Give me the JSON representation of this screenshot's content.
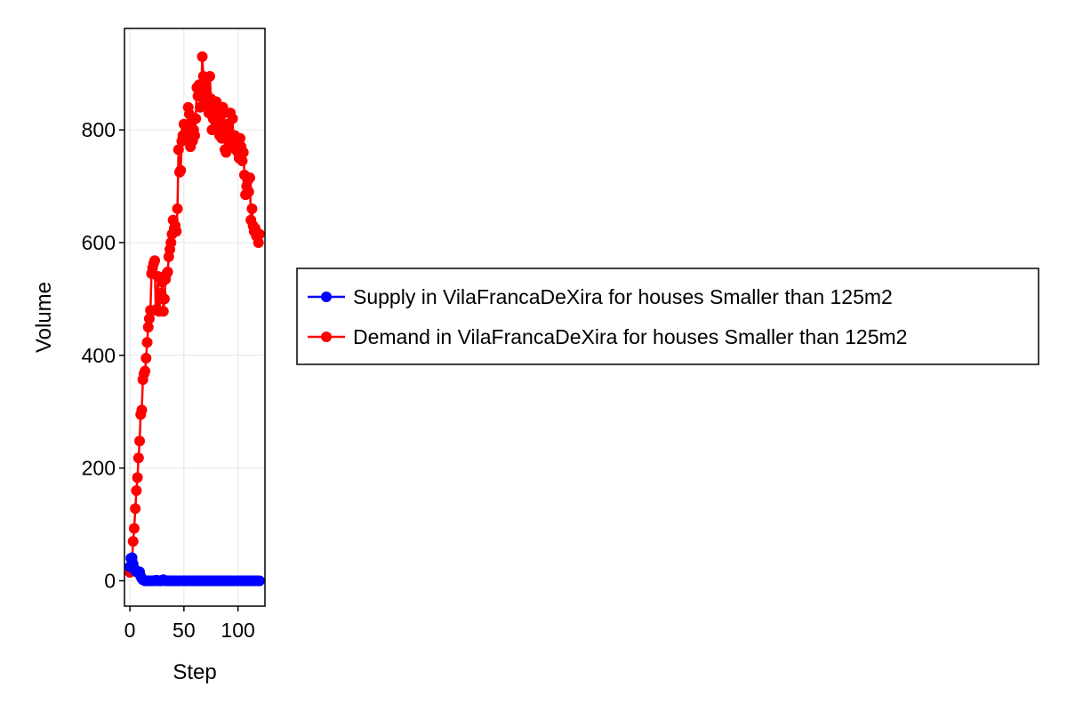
{
  "chart_data": {
    "type": "line",
    "title": "",
    "xlabel": "Step",
    "ylabel": "Volume",
    "xlim": [
      -5,
      125
    ],
    "ylim": [
      -45,
      980
    ],
    "x_ticks": [
      0,
      50,
      100
    ],
    "y_ticks": [
      0,
      200,
      400,
      600,
      800
    ],
    "x_tick_labels": [
      "0",
      "50",
      "100"
    ],
    "y_tick_labels": [
      "0",
      "200",
      "400",
      "600",
      "800"
    ],
    "grid": true,
    "markers": true,
    "legend_position": "right",
    "series": [
      {
        "name": "Supply in VilaFrancaDeXira for houses Smaller than 125m2",
        "color": "#0000ff",
        "x": [
          0,
          1,
          2,
          3,
          4,
          5,
          6,
          7,
          8,
          9,
          10,
          11,
          12,
          13,
          14,
          15,
          16,
          17,
          18,
          19,
          20,
          21,
          22,
          23,
          24,
          25,
          26,
          27,
          28,
          29,
          30,
          31,
          32,
          33,
          34,
          35,
          36,
          37,
          38,
          39,
          40,
          41,
          42,
          43,
          44,
          45,
          46,
          47,
          48,
          49,
          50,
          51,
          52,
          53,
          54,
          55,
          56,
          57,
          58,
          59,
          60,
          61,
          62,
          63,
          64,
          65,
          66,
          67,
          68,
          69,
          70,
          71,
          72,
          73,
          74,
          75,
          76,
          77,
          78,
          79,
          80,
          81,
          82,
          83,
          84,
          85,
          86,
          87,
          88,
          89,
          90,
          91,
          92,
          93,
          94,
          95,
          96,
          97,
          98,
          99,
          100,
          101,
          102,
          103,
          104,
          105,
          106,
          107,
          108,
          109,
          110,
          111,
          112,
          113,
          114,
          115,
          116,
          117,
          118,
          119,
          120
        ],
        "y": [
          25,
          40,
          41,
          30,
          22,
          18,
          16,
          16,
          14,
          16,
          8,
          4,
          2,
          1,
          0,
          0,
          0,
          0,
          0,
          0,
          0,
          0,
          0,
          0,
          1,
          1,
          0,
          0,
          0,
          0,
          1,
          2,
          1,
          0,
          0,
          0,
          0,
          0,
          0,
          0,
          0,
          0,
          0,
          0,
          0,
          0,
          0,
          0,
          0,
          0,
          0,
          0,
          0,
          0,
          0,
          0,
          0,
          0,
          0,
          0,
          0,
          0,
          0,
          0,
          0,
          0,
          0,
          0,
          0,
          0,
          0,
          0,
          0,
          0,
          0,
          0,
          0,
          0,
          0,
          0,
          0,
          0,
          0,
          0,
          0,
          0,
          0,
          0,
          0,
          0,
          0,
          0,
          0,
          0,
          0,
          0,
          0,
          0,
          0,
          0,
          0,
          0,
          0,
          0,
          0,
          0,
          0,
          0,
          0,
          0,
          0,
          0,
          0,
          0,
          0,
          0,
          0,
          0,
          0,
          0,
          0
        ]
      },
      {
        "name": "Demand in VilaFrancaDeXira for houses Smaller than 125m2",
        "color": "#ff0000",
        "x": [
          0,
          1,
          2,
          3,
          4,
          5,
          6,
          7,
          8,
          9,
          10,
          11,
          12,
          13,
          14,
          15,
          16,
          17,
          18,
          19,
          20,
          21,
          22,
          23,
          24,
          25,
          26,
          27,
          28,
          29,
          30,
          31,
          32,
          33,
          34,
          35,
          36,
          37,
          38,
          39,
          40,
          41,
          42,
          43,
          44,
          45,
          46,
          47,
          48,
          49,
          50,
          51,
          52,
          53,
          54,
          55,
          56,
          57,
          58,
          59,
          60,
          61,
          62,
          63,
          64,
          65,
          66,
          67,
          68,
          69,
          70,
          71,
          72,
          73,
          74,
          75,
          76,
          77,
          78,
          79,
          80,
          81,
          82,
          83,
          84,
          85,
          86,
          87,
          88,
          89,
          90,
          91,
          92,
          93,
          94,
          95,
          96,
          97,
          98,
          99,
          100,
          101,
          102,
          103,
          104,
          105,
          106,
          107,
          108,
          109,
          110,
          111,
          112,
          113,
          114,
          115,
          116,
          117,
          118,
          119,
          120
        ],
        "y": [
          15,
          20,
          35,
          70,
          93,
          128,
          160,
          183,
          218,
          248,
          295,
          303,
          357,
          367,
          372,
          395,
          423,
          450,
          465,
          480,
          545,
          555,
          563,
          568,
          480,
          482,
          540,
          478,
          500,
          510,
          530,
          478,
          500,
          535,
          545,
          548,
          575,
          588,
          600,
          615,
          640,
          625,
          630,
          620,
          660,
          765,
          725,
          728,
          780,
          790,
          810,
          785,
          800,
          795,
          840,
          828,
          770,
          815,
          780,
          800,
          790,
          820,
          875,
          860,
          880,
          840,
          870,
          930,
          895,
          880,
          850,
          865,
          840,
          830,
          895,
          855,
          800,
          820,
          840,
          815,
          850,
          830,
          800,
          790,
          815,
          785,
          840,
          830,
          765,
          760,
          810,
          800,
          790,
          830,
          775,
          820,
          780,
          790,
          765,
          780,
          760,
          750,
          785,
          770,
          745,
          760,
          720,
          685,
          700,
          710,
          690,
          715,
          640,
          660,
          630,
          620,
          625,
          612,
          610,
          600,
          615
        ]
      }
    ]
  }
}
